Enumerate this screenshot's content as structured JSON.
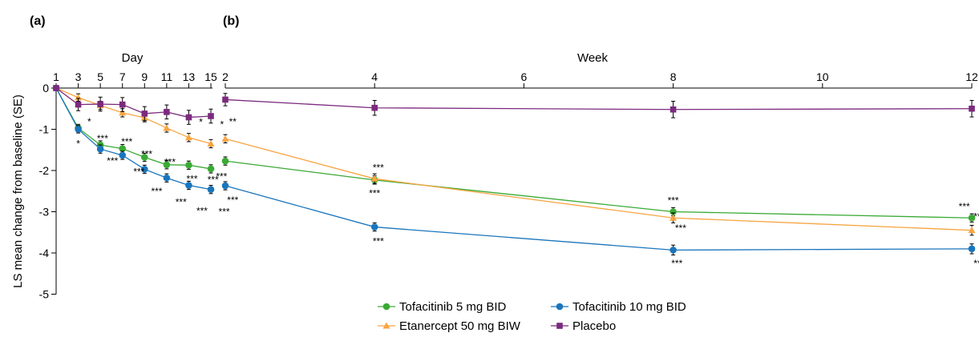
{
  "figure": {
    "panel_a_label": "(a)",
    "panel_b_label": "(b)"
  },
  "chart_data": [
    {
      "panel": "(a)",
      "type": "line",
      "xlabel": "Day",
      "ylabel": "LS mean change from baseline (SE)",
      "xticks": [
        "1",
        "3",
        "5",
        "7",
        "9",
        "11",
        "13",
        "15"
      ],
      "yticks": [
        "0",
        "-1",
        "-2",
        "-3",
        "-4",
        "-5"
      ],
      "xlim": [
        1,
        15.5
      ],
      "ylim": [
        -5,
        0
      ],
      "grid": false,
      "series": [
        {
          "name": "Tofacitinib 5 mg BID",
          "color": "#3aaa35",
          "marker": "circle",
          "x": [
            1,
            3,
            5,
            7,
            9,
            11,
            13,
            15
          ],
          "y": [
            0,
            -0.97,
            -1.38,
            -1.47,
            -1.68,
            -1.86,
            -1.87,
            -1.96
          ],
          "se": [
            0.05,
            0.09,
            0.1,
            0.1,
            0.1,
            0.1,
            0.1,
            0.1
          ]
        },
        {
          "name": "Tofacitinib 10 mg BID",
          "color": "#1a75bc",
          "marker": "circle",
          "x": [
            1,
            3,
            5,
            7,
            9,
            11,
            13,
            15
          ],
          "y": [
            0,
            -1.0,
            -1.48,
            -1.63,
            -1.97,
            -2.18,
            -2.36,
            -2.46
          ],
          "se": [
            0.05,
            0.09,
            0.1,
            0.1,
            0.1,
            0.1,
            0.1,
            0.1
          ]
        },
        {
          "name": "Etanercept 50 mg BIW",
          "color": "#f7a541",
          "marker": "triangle",
          "x": [
            1,
            3,
            5,
            7,
            9,
            11,
            13,
            15
          ],
          "y": [
            0,
            -0.23,
            -0.42,
            -0.6,
            -0.72,
            -0.97,
            -1.2,
            -1.35
          ],
          "se": [
            0.05,
            0.09,
            0.1,
            0.1,
            0.1,
            0.1,
            0.1,
            0.1
          ]
        },
        {
          "name": "Placebo",
          "color": "#7b2a7e",
          "marker": "square",
          "x": [
            1,
            3,
            5,
            7,
            9,
            11,
            13,
            15
          ],
          "y": [
            0,
            -0.4,
            -0.39,
            -0.4,
            -0.62,
            -0.58,
            -0.71,
            -0.68
          ],
          "se": [
            0.05,
            0.15,
            0.17,
            0.17,
            0.17,
            0.17,
            0.17,
            0.17
          ]
        }
      ],
      "annotations": [
        {
          "text": "*",
          "x": 3,
          "y": -1.35
        },
        {
          "text": "*",
          "x": 4,
          "y": -0.82
        },
        {
          "text": "***",
          "x": 5.2,
          "y": -1.22
        },
        {
          "text": "***",
          "x": 6.1,
          "y": -1.77
        },
        {
          "text": "***",
          "x": 7.4,
          "y": -1.3
        },
        {
          "text": "***",
          "x": 8.5,
          "y": -2.03
        },
        {
          "text": "***",
          "x": 9.2,
          "y": -1.6
        },
        {
          "text": "***",
          "x": 10.1,
          "y": -2.5
        },
        {
          "text": "***",
          "x": 11.3,
          "y": -1.8
        },
        {
          "text": "***",
          "x": 12.3,
          "y": -2.77
        },
        {
          "text": "***",
          "x": 13.3,
          "y": -2.2
        },
        {
          "text": "***",
          "x": 14.2,
          "y": -2.98
        },
        {
          "text": "***",
          "x": 15.2,
          "y": -2.22
        },
        {
          "text": "***",
          "x": 16.2,
          "y": -3.0
        },
        {
          "text": "*",
          "x": 14.1,
          "y": -0.83
        },
        {
          "text": "*",
          "x": 16.0,
          "y": -0.88
        }
      ]
    },
    {
      "panel": "(b)",
      "type": "line",
      "xlabel": "Week",
      "xticks": [
        "2",
        "4",
        "6",
        "8",
        "10",
        "12"
      ],
      "xlim": [
        2,
        12
      ],
      "ylim": [
        -5,
        0
      ],
      "grid": false,
      "series": [
        {
          "name": "Tofacitinib 5 mg BID",
          "color": "#3aaa35",
          "marker": "circle",
          "x": [
            2,
            4,
            8,
            12
          ],
          "y": [
            -1.77,
            -2.23,
            -3.0,
            -3.15
          ],
          "se": [
            0.1,
            0.1,
            0.1,
            0.1
          ]
        },
        {
          "name": "Tofacitinib 10 mg BID",
          "color": "#1a75bc",
          "marker": "circle",
          "x": [
            2,
            4,
            8,
            12
          ],
          "y": [
            -2.37,
            -3.37,
            -3.93,
            -3.9
          ],
          "se": [
            0.1,
            0.1,
            0.12,
            0.12
          ]
        },
        {
          "name": "Etanercept 50 mg BIW",
          "color": "#f7a541",
          "marker": "triangle",
          "x": [
            2,
            4,
            8,
            12
          ],
          "y": [
            -1.23,
            -2.2,
            -3.15,
            -3.45
          ],
          "se": [
            0.1,
            0.12,
            0.12,
            0.12
          ]
        },
        {
          "name": "Placebo",
          "color": "#7b2a7e",
          "marker": "square",
          "x": [
            2,
            4,
            8,
            12
          ],
          "y": [
            -0.28,
            -0.48,
            -0.52,
            -0.5
          ],
          "se": [
            0.15,
            0.18,
            0.2,
            0.2
          ]
        }
      ],
      "annotations": [
        {
          "text": "**",
          "x": 2.1,
          "y": -0.82
        },
        {
          "text": "***",
          "x": 1.95,
          "y": -2.15
        },
        {
          "text": "***",
          "x": 2.1,
          "y": -2.72
        },
        {
          "text": "***",
          "x": 4.05,
          "y": -1.93
        },
        {
          "text": "***",
          "x": 4.0,
          "y": -2.55
        },
        {
          "text": "***",
          "x": 4.05,
          "y": -3.72
        },
        {
          "text": "***",
          "x": 8.0,
          "y": -2.73
        },
        {
          "text": "***",
          "x": 8.1,
          "y": -3.4
        },
        {
          "text": "***",
          "x": 8.05,
          "y": -4.25
        },
        {
          "text": "***",
          "x": 11.9,
          "y": -2.87
        },
        {
          "text": "***",
          "x": 12.1,
          "y": -3.12
        },
        {
          "text": "***",
          "x": 12.1,
          "y": -4.25
        }
      ]
    }
  ],
  "legend": {
    "placement": "bottom-center",
    "items": [
      {
        "label": "Tofacitinib 5 mg BID",
        "color": "#3aaa35",
        "marker": "circle"
      },
      {
        "label": "Tofacitinib 10 mg BID",
        "color": "#1a75bc",
        "marker": "circle"
      },
      {
        "label": "Etanercept 50 mg BIW",
        "color": "#f7a541",
        "marker": "triangle"
      },
      {
        "label": "Placebo",
        "color": "#7b2a7e",
        "marker": "square"
      }
    ]
  }
}
